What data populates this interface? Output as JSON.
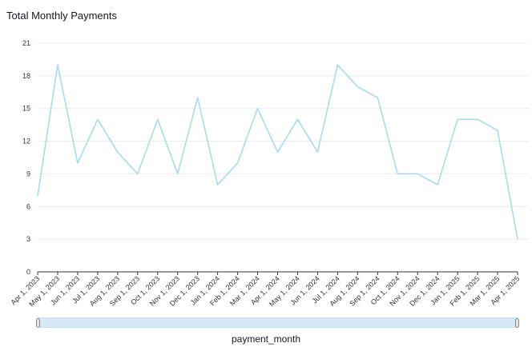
{
  "chart_data": {
    "type": "line",
    "title": "Total Monthly Payments",
    "xlabel": "payment_month",
    "ylabel": "",
    "ylim": [
      0,
      21
    ],
    "yticks": [
      0,
      3,
      6,
      9,
      12,
      15,
      18,
      21
    ],
    "grid": true,
    "categories": [
      "Apr 1, 2023",
      "May 1, 2023",
      "Jun 1, 2023",
      "Jul 1, 2023",
      "Aug 1, 2023",
      "Sep 1, 2023",
      "Oct 1, 2023",
      "Nov 1, 2023",
      "Dec 1, 2023",
      "Jan 1, 2024",
      "Feb 1, 2024",
      "Mar 1, 2024",
      "Apr 1, 2024",
      "May 1, 2024",
      "Jun 1, 2024",
      "Jul 1, 2024",
      "Aug 1, 2024",
      "Sep 1, 2024",
      "Oct 1, 2024",
      "Nov 1, 2024",
      "Dec 1, 2024",
      "Jan 1, 2025",
      "Feb 1, 2025",
      "Mar 1, 2025",
      "Apr 1, 2025"
    ],
    "series": [
      {
        "values": [
          7,
          19,
          10,
          14,
          11,
          9,
          14,
          9,
          16,
          8,
          10,
          15,
          11,
          14,
          11,
          19,
          17,
          16,
          9,
          9,
          8,
          14,
          14,
          13,
          3
        ]
      }
    ],
    "line_color": "#a6dcec"
  }
}
